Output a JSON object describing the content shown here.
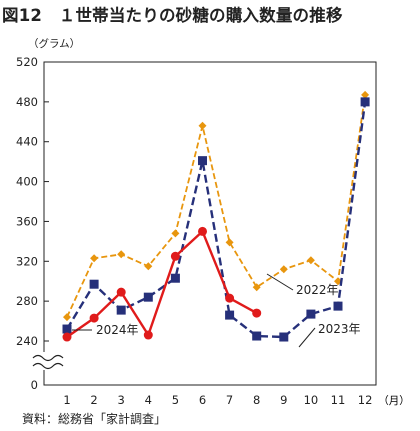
{
  "header": {
    "title": "図12　１世帯当たりの砂糖の購入数量の推移"
  },
  "footer": {
    "source": "資料：総務省「家計調査」"
  },
  "chart_data": {
    "type": "line",
    "title": "図12　１世帯当たりの砂糖の購入数量の推移",
    "ylabel": "（グラム）",
    "xlabel": "（月）",
    "x": [
      1,
      2,
      3,
      4,
      5,
      6,
      7,
      8,
      9,
      10,
      11,
      12
    ],
    "y_ticks": [
      0,
      240,
      280,
      320,
      360,
      400,
      440,
      480,
      520
    ],
    "ylim": [
      240,
      520
    ],
    "y_axis_break": true,
    "grid": false,
    "series": [
      {
        "name": "2022年",
        "color": "#e8960e",
        "style": "dashed",
        "marker": "diamond",
        "values": [
          264,
          323,
          327,
          315,
          348,
          456,
          339,
          294,
          312,
          321,
          300,
          487
        ]
      },
      {
        "name": "2023年",
        "color": "#26307a",
        "style": "dashed",
        "marker": "square",
        "values": [
          252,
          297,
          271,
          284,
          303,
          421,
          266,
          245,
          244,
          267,
          275,
          480
        ]
      },
      {
        "name": "2024年",
        "color": "#e01b1b",
        "style": "solid",
        "marker": "circle",
        "values": [
          244,
          263,
          289,
          246,
          325,
          350,
          283,
          268,
          null,
          null,
          null,
          null
        ]
      }
    ]
  }
}
